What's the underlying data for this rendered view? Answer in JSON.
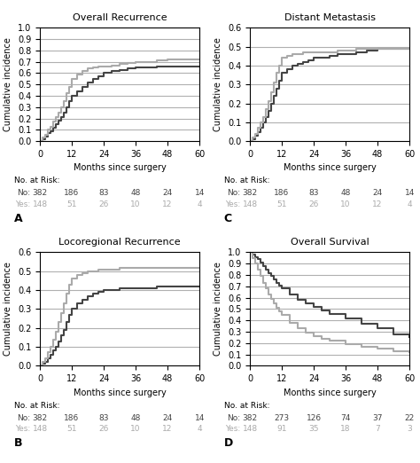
{
  "chart_data": [
    {
      "type": "step",
      "title": "Overall Recurrence",
      "label": "A",
      "x_label": "Months since surgery",
      "y_label": "Cumulative incidence",
      "xlim": [
        0,
        60
      ],
      "xticks": [
        0,
        12,
        24,
        36,
        48,
        60
      ],
      "ylim": [
        0.0,
        1.0
      ],
      "yticks": [
        0.0,
        0.1,
        0.2,
        0.3,
        0.4,
        0.5,
        0.6,
        0.7,
        0.8,
        0.9,
        1.0
      ],
      "grid": "y",
      "series": [
        {
          "color": "#444444",
          "x": [
            0,
            1,
            2,
            3,
            4,
            5,
            6,
            7,
            8,
            9,
            10,
            11,
            12,
            14,
            16,
            18,
            20,
            22,
            24,
            27,
            30,
            33,
            36,
            40,
            44,
            48,
            54,
            60
          ],
          "values": [
            0,
            0.02,
            0.04,
            0.07,
            0.09,
            0.12,
            0.15,
            0.18,
            0.21,
            0.25,
            0.3,
            0.35,
            0.4,
            0.44,
            0.48,
            0.52,
            0.55,
            0.57,
            0.6,
            0.62,
            0.63,
            0.64,
            0.65,
            0.65,
            0.66,
            0.66,
            0.66,
            0.66
          ]
        },
        {
          "color": "#aaaaaa",
          "x": [
            0,
            1,
            2,
            3,
            4,
            5,
            6,
            7,
            8,
            9,
            10,
            11,
            12,
            14,
            16,
            18,
            20,
            22,
            24,
            27,
            30,
            33,
            36,
            40,
            44,
            48,
            54,
            60
          ],
          "values": [
            0,
            0.03,
            0.06,
            0.1,
            0.13,
            0.17,
            0.21,
            0.25,
            0.3,
            0.35,
            0.42,
            0.48,
            0.55,
            0.59,
            0.62,
            0.64,
            0.65,
            0.66,
            0.66,
            0.67,
            0.68,
            0.69,
            0.7,
            0.7,
            0.71,
            0.72,
            0.72,
            0.72
          ]
        }
      ],
      "risk_table": {
        "title": "No. at Risk:",
        "x": [
          0,
          12,
          24,
          36,
          48,
          60
        ],
        "rows": [
          {
            "name": "No:",
            "color": "#444444",
            "values": [
              382,
              186,
              83,
              48,
              24,
              14
            ]
          },
          {
            "name": "Yes:",
            "color": "#aaaaaa",
            "values": [
              148,
              51,
              26,
              10,
              12,
              4
            ]
          }
        ]
      }
    },
    {
      "type": "step",
      "title": "Locoregional Recurrence",
      "label": "B",
      "x_label": "Months since surgery",
      "y_label": "Cumulative incidence",
      "xlim": [
        0,
        60
      ],
      "xticks": [
        0,
        12,
        24,
        36,
        48,
        60
      ],
      "ylim": [
        0.0,
        0.6
      ],
      "yticks": [
        0.0,
        0.1,
        0.2,
        0.3,
        0.4,
        0.5,
        0.6
      ],
      "grid": "y",
      "series": [
        {
          "color": "#444444",
          "x": [
            0,
            1,
            2,
            3,
            4,
            5,
            6,
            7,
            8,
            9,
            10,
            11,
            12,
            14,
            16,
            18,
            20,
            22,
            24,
            27,
            30,
            33,
            36,
            40,
            44,
            48,
            54,
            60
          ],
          "values": [
            0,
            0.01,
            0.02,
            0.04,
            0.06,
            0.08,
            0.1,
            0.13,
            0.16,
            0.19,
            0.23,
            0.27,
            0.3,
            0.33,
            0.35,
            0.37,
            0.38,
            0.39,
            0.4,
            0.4,
            0.41,
            0.41,
            0.41,
            0.41,
            0.42,
            0.42,
            0.42,
            0.42
          ]
        },
        {
          "color": "#aaaaaa",
          "x": [
            0,
            1,
            2,
            3,
            4,
            5,
            6,
            7,
            8,
            9,
            10,
            11,
            12,
            14,
            16,
            18,
            20,
            22,
            24,
            27,
            30,
            33,
            36,
            40,
            44,
            48,
            54,
            60
          ],
          "values": [
            0,
            0.02,
            0.04,
            0.07,
            0.1,
            0.14,
            0.18,
            0.23,
            0.28,
            0.33,
            0.38,
            0.43,
            0.46,
            0.48,
            0.49,
            0.5,
            0.5,
            0.51,
            0.51,
            0.51,
            0.52,
            0.52,
            0.52,
            0.52,
            0.52,
            0.52,
            0.52,
            0.52
          ]
        }
      ],
      "risk_table": {
        "title": "No. at Risk:",
        "x": [
          0,
          12,
          24,
          36,
          48,
          60
        ],
        "rows": [
          {
            "name": "No:",
            "color": "#444444",
            "values": [
              382,
              186,
              83,
              48,
              24,
              14
            ]
          },
          {
            "name": "Yes:",
            "color": "#aaaaaa",
            "values": [
              148,
              51,
              26,
              10,
              12,
              4
            ]
          }
        ]
      }
    },
    {
      "type": "step",
      "title": "Distant Metastasis",
      "label": "C",
      "x_label": "Months since surgery",
      "y_label": "Cumulative incidence",
      "xlim": [
        0,
        60
      ],
      "xticks": [
        0,
        12,
        24,
        36,
        48,
        60
      ],
      "ylim": [
        0.0,
        0.6
      ],
      "yticks": [
        0.0,
        0.1,
        0.2,
        0.3,
        0.4,
        0.5,
        0.6
      ],
      "grid": "y",
      "series": [
        {
          "color": "#444444",
          "x": [
            0,
            1,
            2,
            3,
            4,
            5,
            6,
            7,
            8,
            9,
            10,
            11,
            12,
            14,
            16,
            18,
            20,
            22,
            24,
            27,
            30,
            33,
            36,
            40,
            44,
            48,
            54,
            60
          ],
          "values": [
            0,
            0.01,
            0.03,
            0.05,
            0.07,
            0.1,
            0.13,
            0.16,
            0.2,
            0.24,
            0.28,
            0.32,
            0.36,
            0.38,
            0.4,
            0.41,
            0.42,
            0.43,
            0.44,
            0.44,
            0.45,
            0.46,
            0.46,
            0.47,
            0.48,
            0.49,
            0.49,
            0.49
          ]
        },
        {
          "color": "#aaaaaa",
          "x": [
            0,
            1,
            2,
            3,
            4,
            5,
            6,
            7,
            8,
            9,
            10,
            11,
            12,
            14,
            16,
            18,
            20,
            22,
            24,
            27,
            30,
            33,
            36,
            40,
            44,
            48,
            54,
            60
          ],
          "values": [
            0,
            0.02,
            0.04,
            0.07,
            0.1,
            0.13,
            0.17,
            0.21,
            0.26,
            0.31,
            0.36,
            0.4,
            0.44,
            0.45,
            0.46,
            0.46,
            0.47,
            0.47,
            0.47,
            0.47,
            0.47,
            0.48,
            0.48,
            0.49,
            0.49,
            0.49,
            0.49,
            0.49
          ]
        }
      ],
      "risk_table": {
        "title": "No. at Risk:",
        "x": [
          0,
          12,
          24,
          36,
          48,
          60
        ],
        "rows": [
          {
            "name": "No:",
            "color": "#444444",
            "values": [
              382,
              186,
              83,
              48,
              24,
              14
            ]
          },
          {
            "name": "Yes:",
            "color": "#aaaaaa",
            "values": [
              148,
              51,
              26,
              10,
              12,
              4
            ]
          }
        ]
      }
    },
    {
      "type": "step",
      "title": "Overall Survival",
      "label": "D",
      "x_label": "Months since surgery",
      "y_label": "Cumulative incidence",
      "xlim": [
        0,
        60
      ],
      "xticks": [
        0,
        12,
        24,
        36,
        48,
        60
      ],
      "ylim": [
        0.0,
        1.0
      ],
      "yticks": [
        0.0,
        0.1,
        0.2,
        0.3,
        0.4,
        0.5,
        0.6,
        0.7,
        0.8,
        0.9,
        1.0
      ],
      "grid": "y",
      "series": [
        {
          "color": "#444444",
          "x": [
            0,
            1,
            2,
            3,
            4,
            5,
            6,
            7,
            8,
            9,
            10,
            11,
            12,
            15,
            18,
            21,
            24,
            27,
            30,
            36,
            42,
            48,
            54,
            60
          ],
          "values": [
            1.0,
            0.98,
            0.96,
            0.94,
            0.91,
            0.88,
            0.85,
            0.82,
            0.79,
            0.76,
            0.73,
            0.71,
            0.68,
            0.63,
            0.58,
            0.55,
            0.52,
            0.49,
            0.46,
            0.42,
            0.37,
            0.33,
            0.28,
            0.25
          ]
        },
        {
          "color": "#aaaaaa",
          "x": [
            0,
            1,
            2,
            3,
            4,
            5,
            6,
            7,
            8,
            9,
            10,
            11,
            12,
            15,
            18,
            21,
            24,
            27,
            30,
            36,
            42,
            48,
            54,
            60
          ],
          "values": [
            1.0,
            0.95,
            0.9,
            0.85,
            0.79,
            0.73,
            0.68,
            0.63,
            0.59,
            0.55,
            0.51,
            0.48,
            0.45,
            0.38,
            0.33,
            0.29,
            0.26,
            0.24,
            0.22,
            0.19,
            0.17,
            0.15,
            0.13,
            0.12
          ]
        }
      ],
      "risk_table": {
        "title": "No. at Risk:",
        "x": [
          0,
          12,
          24,
          36,
          48,
          60
        ],
        "rows": [
          {
            "name": "No:",
            "color": "#444444",
            "values": [
              382,
              273,
              126,
              74,
              37,
              22
            ]
          },
          {
            "name": "Yes:",
            "color": "#aaaaaa",
            "values": [
              148,
              91,
              35,
              18,
              7,
              3
            ]
          }
        ]
      }
    }
  ]
}
